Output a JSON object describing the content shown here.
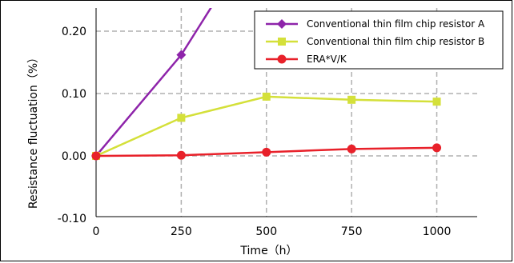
{
  "chart_data": {
    "type": "line",
    "xlabel": "Time（h）",
    "ylabel": "Resistance fluctuation（%）",
    "xlim": [
      0,
      1000
    ],
    "ylim": [
      -0.1,
      0.22
    ],
    "xticks": [
      0,
      250,
      500,
      750,
      1000
    ],
    "yticks": [
      -0.1,
      0.0,
      0.1,
      0.2
    ],
    "xtick_labels": [
      "0",
      "250",
      "500",
      "750",
      "1000"
    ],
    "ytick_labels": [
      "-0.10",
      "0.00",
      "0.10",
      "0.20"
    ],
    "grid": true,
    "legend_position": "top-right",
    "series": [
      {
        "name": "Conventional thin film chip resistor A",
        "color": "#8e24aa",
        "marker": "diamond",
        "x": [
          0,
          250,
          340
        ],
        "y": [
          0.0,
          0.162,
          0.24
        ]
      },
      {
        "name": "Conventional thin film chip resistor B",
        "color": "#d4e03a",
        "marker": "square",
        "x": [
          0,
          250,
          500,
          750,
          1000
        ],
        "y": [
          0.0,
          0.061,
          0.095,
          0.09,
          0.087
        ]
      },
      {
        "name": "ERA*V/K",
        "color": "#e8212a",
        "marker": "circle",
        "x": [
          0,
          250,
          500,
          750,
          1000
        ],
        "y": [
          0.0,
          0.001,
          0.006,
          0.011,
          0.013
        ]
      }
    ]
  }
}
